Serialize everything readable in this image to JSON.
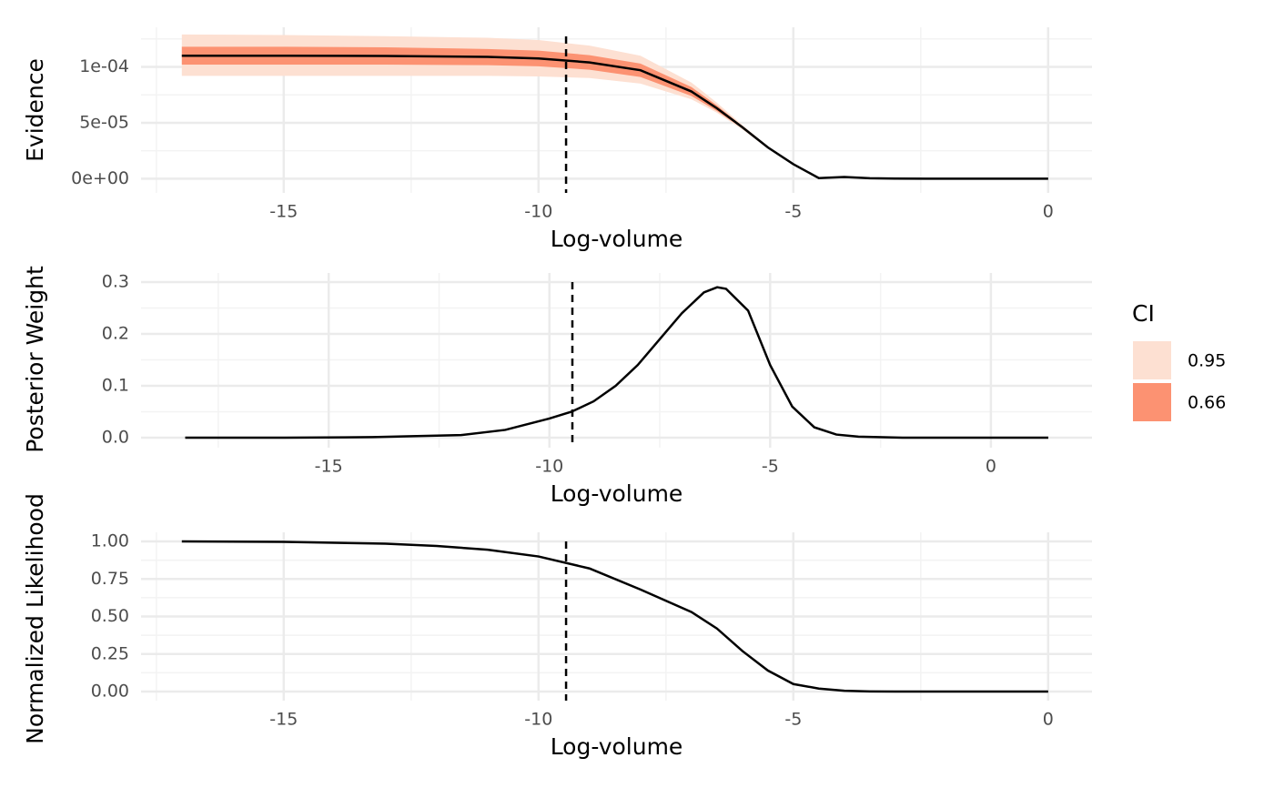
{
  "chart_data": [
    {
      "type": "line",
      "title_y": "Evidence",
      "title_x": "Log-volume",
      "xlim": [
        -17.8,
        0.86
      ],
      "xticks": [
        -15,
        -10,
        -5,
        0
      ],
      "ylim": [
        -1.27e-05,
        0.0001354
      ],
      "yticks": [
        {
          "value": 0,
          "label": "0e+00"
        },
        {
          "value": 5e-05,
          "label": "5e-05"
        },
        {
          "value": 0.0001,
          "label": "1e-04"
        }
      ],
      "grid": true,
      "color": "#000000",
      "vline": -9.46,
      "legend_title": "CI",
      "legend": "right",
      "x": [
        -17,
        -15,
        -13,
        -11,
        -10,
        -9,
        -8,
        -7,
        -6.5,
        -6,
        -5.5,
        -5,
        -4.5,
        -4,
        -3.5,
        -3,
        -2,
        -1,
        0
      ],
      "values": [
        0.00011,
        0.00011,
        0.0001098,
        0.000109,
        0.0001075,
        0.000104,
        9.7e-05,
        7.8e-05,
        6.3e-05,
        4.6e-05,
        2.8e-05,
        1.3e-05,
        5e-07,
        1.5e-06,
        4e-07,
        1e-07,
        0,
        0,
        0
      ],
      "bands": [
        {
          "name": "0.95",
          "color": "#fde0d2",
          "lower": [
            9.2e-05,
            9.2e-05,
            9.2e-05,
            9.2e-05,
            9.15e-05,
            9e-05,
            8.5e-05,
            7.1e-05,
            5.9e-05,
            4.4e-05,
            2.7e-05,
            1.3e-05,
            5e-07,
            1.5e-06,
            4e-07,
            1e-07,
            0,
            0,
            0
          ],
          "upper": [
            0.000129,
            0.0001285,
            0.0001275,
            0.000126,
            0.000124,
            0.000119,
            0.00011,
            8.6e-05,
            6.8e-05,
            4.8e-05,
            2.9e-05,
            1.3e-05,
            5e-07,
            1.5e-06,
            4e-07,
            1e-07,
            0,
            0,
            0
          ]
        },
        {
          "name": "0.66",
          "color": "#fc9272",
          "lower": [
            0.000102,
            0.000102,
            0.000102,
            0.0001015,
            0.0001005,
            9.75e-05,
            9.1e-05,
            7.4e-05,
            6.05e-05,
            4.5e-05,
            2.75e-05,
            1.3e-05,
            5e-07,
            1.5e-06,
            4e-07,
            1e-07,
            0,
            0,
            0
          ],
          "upper": [
            0.000118,
            0.000118,
            0.0001175,
            0.000116,
            0.0001145,
            0.0001105,
            0.000103,
            8.2e-05,
            6.55e-05,
            4.7e-05,
            2.85e-05,
            1.3e-05,
            5e-07,
            1.5e-06,
            4e-07,
            1e-07,
            0,
            0,
            0
          ]
        }
      ]
    },
    {
      "type": "line",
      "title_y": "Posterior Weight",
      "title_x": "Log-volume",
      "xlim": [
        -19.25,
        2.29
      ],
      "xticks": [
        -15,
        -10,
        -5,
        0
      ],
      "ylim": [
        -0.0193,
        0.3175
      ],
      "yticks": [
        {
          "value": 0,
          "label": "0.0"
        },
        0.1,
        0.2,
        0.3
      ],
      "grid": true,
      "color": "#000000",
      "vline": -9.48,
      "x": [
        -18.25,
        -16,
        -14,
        -12,
        -11,
        -10,
        -9.5,
        -9,
        -8.5,
        -8,
        -7.5,
        -7,
        -6.5,
        -6.2,
        -6,
        -5.5,
        -5,
        -4.5,
        -4,
        -3.5,
        -3,
        -2,
        -1,
        0,
        1.3
      ],
      "values": [
        0,
        0,
        0.001,
        0.005,
        0.015,
        0.037,
        0.05,
        0.07,
        0.1,
        0.14,
        0.19,
        0.24,
        0.28,
        0.29,
        0.287,
        0.245,
        0.14,
        0.06,
        0.02,
        0.006,
        0.002,
        0,
        0,
        0,
        0
      ]
    },
    {
      "type": "line",
      "title_y": "Normalized Likelihood",
      "title_x": "Log-volume",
      "xlim": [
        -17.8,
        0.86
      ],
      "xticks": [
        -15,
        -10,
        -5,
        0
      ],
      "ylim": [
        -0.0606,
        1.061
      ],
      "yticks": [
        {
          "value": 0,
          "label": "0.00"
        },
        0.25,
        {
          "value": 0.5,
          "label": "0.50"
        },
        0.75,
        {
          "value": 1,
          "label": "1.00"
        }
      ],
      "grid": true,
      "color": "#000000",
      "vline": -9.46,
      "x": [
        -17,
        -15,
        -13,
        -12,
        -11,
        -10,
        -9,
        -8,
        -7,
        -6.5,
        -6,
        -5.5,
        -5,
        -4.5,
        -4,
        -3.5,
        -3,
        -2,
        -1,
        0
      ],
      "values": [
        1,
        0.997,
        0.985,
        0.97,
        0.945,
        0.9,
        0.82,
        0.68,
        0.53,
        0.42,
        0.27,
        0.14,
        0.05,
        0.02,
        0.005,
        0.001,
        0,
        0,
        0,
        0
      ]
    }
  ]
}
